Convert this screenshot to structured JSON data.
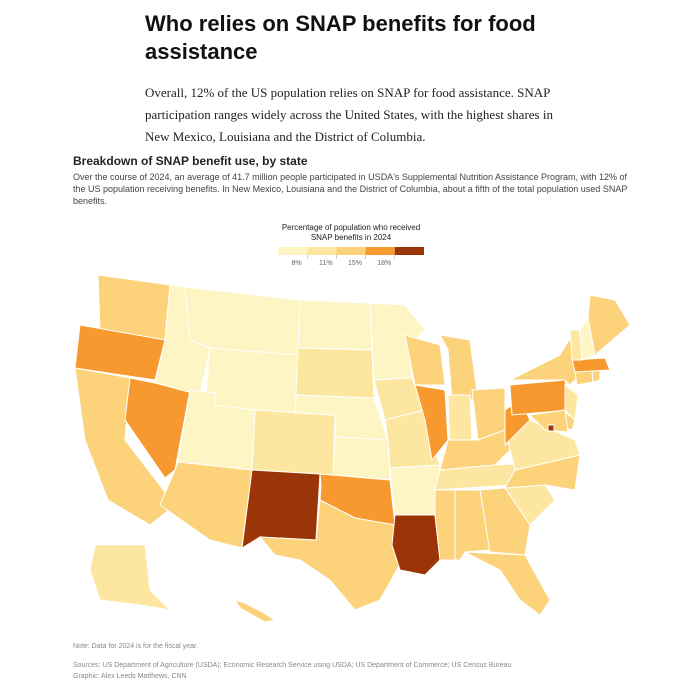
{
  "header": {
    "title": "Who relies on SNAP benefits for food assistance",
    "intro": "Overall, 12% of the US population relies on SNAP for food assistance. SNAP participation ranges widely across the United States, with the highest shares in New Mexico, Louisiana and the District of Columbia."
  },
  "map": {
    "title": "Breakdown of SNAP benefit use, by state",
    "description": "Over the course of 2024, an average of 41.7 million people participated in USDA's Supplemental Nutrition Assistance Program, with 12% of the US population receiving benefits. In New Mexico, Louisiana and the District of Columbia, about a fifth of the total population used SNAP benefits.",
    "legend": {
      "title": "Percentage of population who received SNAP benefits in 2024",
      "ticks": [
        {
          "value": 8,
          "label": "8%"
        },
        {
          "value": 11,
          "label": "11%"
        },
        {
          "value": 15,
          "label": "15%"
        },
        {
          "value": 18,
          "label": "18%"
        }
      ],
      "colors": [
        "#fef5c4",
        "#fde7a0",
        "#fcd27a",
        "#f8992f",
        "#9b3508"
      ]
    },
    "states": [
      11.5,
      16,
      13,
      15.5,
      7,
      7.5,
      4,
      5,
      10,
      12,
      21,
      6,
      9,
      7.5,
      7,
      15.5,
      12,
      7.5,
      9,
      10,
      7.5,
      20,
      11,
      15.5,
      13,
      9,
      12,
      12,
      10,
      13,
      14,
      13,
      13,
      10,
      12,
      10,
      16,
      15.5,
      14.5,
      9,
      12,
      11.5,
      19,
      12,
      14,
      15.5,
      10,
      6,
      12,
      10,
      12
    ]
  },
  "footer": {
    "note": "Note: Data for 2024 is for the fiscal year.",
    "sources": "Sources: US Department of Agriculture (USDA); Economic Research Service using USDA; US Department of Commerce; US Census Bureau",
    "credit": "Graphic: Alex Leeds Matthews, CNN"
  }
}
